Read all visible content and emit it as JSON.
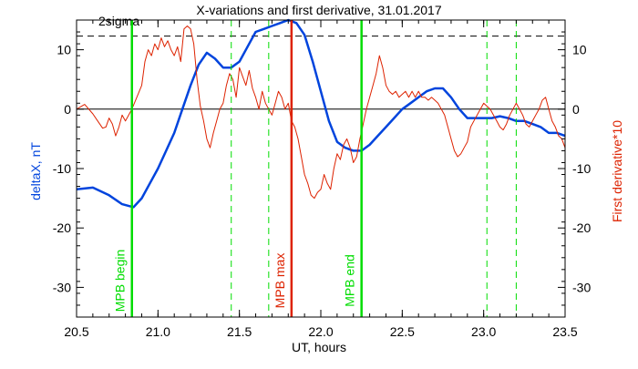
{
  "chart_data": {
    "type": "line",
    "title": "X-variations and first derivative, 31.01.2017",
    "xlabel": "UT, hours",
    "ylabel": "deltaX, nT",
    "ylabel_right": "First derivative*10",
    "xlim": [
      20.5,
      23.5
    ],
    "ylim": [
      -35,
      15
    ],
    "x_ticks": [
      20.5,
      21.0,
      21.5,
      22.0,
      22.5,
      23.0,
      23.5
    ],
    "x_tick_labels": [
      "20.5",
      "21.0",
      "21.5",
      "22.0",
      "22.5",
      "23.0",
      "23.5"
    ],
    "y_ticks": [
      10,
      0,
      -10,
      -20,
      -30
    ],
    "y_tick_labels": [
      "10",
      "0",
      "-10",
      "-20",
      "-30"
    ],
    "grid": false,
    "threshold": {
      "label": "2sigma",
      "value": 12.3,
      "style": "dashed",
      "color": "#000000"
    },
    "zero_line": {
      "value": 0,
      "color": "#000000"
    },
    "vlines": [
      {
        "x": 20.84,
        "label": "MPB begin",
        "color": "#00dd00",
        "style": "solid"
      },
      {
        "x": 21.45,
        "label": "",
        "color": "#00dd00",
        "style": "dashed"
      },
      {
        "x": 21.68,
        "label": "",
        "color": "#00dd00",
        "style": "dashed"
      },
      {
        "x": 21.82,
        "label": "MPB max",
        "color": "#dd2200",
        "style": "solid"
      },
      {
        "x": 22.25,
        "label": "MPB end",
        "color": "#00dd00",
        "style": "solid"
      },
      {
        "x": 23.02,
        "label": "",
        "color": "#00dd00",
        "style": "dashed"
      },
      {
        "x": 23.2,
        "label": "",
        "color": "#00dd00",
        "style": "dashed"
      }
    ],
    "series": [
      {
        "axis": "left",
        "color": "#0044dd",
        "x": [
          20.5,
          20.6,
          20.7,
          20.78,
          20.85,
          20.9,
          20.95,
          21.0,
          21.05,
          21.1,
          21.15,
          21.2,
          21.25,
          21.3,
          21.35,
          21.4,
          21.45,
          21.5,
          21.55,
          21.6,
          21.65,
          21.7,
          21.75,
          21.8,
          21.85,
          21.9,
          21.95,
          22.0,
          22.05,
          22.1,
          22.15,
          22.2,
          22.25,
          22.3,
          22.35,
          22.4,
          22.45,
          22.5,
          22.55,
          22.6,
          22.65,
          22.7,
          22.75,
          22.8,
          22.85,
          22.9,
          22.95,
          23.0,
          23.05,
          23.1,
          23.15,
          23.2,
          23.25,
          23.3,
          23.35,
          23.4,
          23.45,
          23.5
        ],
        "y": [
          -13.5,
          -13.2,
          -14.5,
          -16.0,
          -16.5,
          -15.0,
          -12.5,
          -10.0,
          -7.0,
          -4.0,
          0.0,
          4.0,
          7.5,
          9.5,
          8.5,
          7.0,
          7.0,
          8.0,
          10.5,
          13.0,
          13.5,
          14.0,
          14.5,
          15.0,
          14.5,
          12.5,
          8.0,
          3.0,
          -2.0,
          -5.5,
          -6.5,
          -7.0,
          -7.0,
          -6.0,
          -4.5,
          -3.0,
          -1.5,
          0.0,
          1.0,
          2.0,
          3.0,
          3.5,
          3.5,
          2.0,
          0.0,
          -1.5,
          -1.5,
          -1.5,
          -1.5,
          -1.2,
          -1.5,
          -2.0,
          -2.0,
          -2.5,
          -3.0,
          -4.0,
          -4.0,
          -4.5
        ]
      },
      {
        "axis": "right",
        "color": "#dd2200",
        "x": [
          20.5,
          20.55,
          20.6,
          20.63,
          20.66,
          20.68,
          20.7,
          20.72,
          20.74,
          20.76,
          20.78,
          20.8,
          20.82,
          20.84,
          20.87,
          20.9,
          20.92,
          20.94,
          20.96,
          20.98,
          21.0,
          21.02,
          21.04,
          21.06,
          21.08,
          21.1,
          21.12,
          21.14,
          21.16,
          21.18,
          21.2,
          21.22,
          21.24,
          21.26,
          21.28,
          21.3,
          21.32,
          21.34,
          21.36,
          21.38,
          21.4,
          21.42,
          21.44,
          21.46,
          21.48,
          21.5,
          21.52,
          21.54,
          21.56,
          21.58,
          21.6,
          21.62,
          21.64,
          21.66,
          21.68,
          21.7,
          21.72,
          21.74,
          21.76,
          21.78,
          21.8,
          21.82,
          21.84,
          21.86,
          21.88,
          21.9,
          21.92,
          21.94,
          21.96,
          21.98,
          22.0,
          22.02,
          22.04,
          22.06,
          22.08,
          22.1,
          22.12,
          22.14,
          22.16,
          22.18,
          22.2,
          22.22,
          22.24,
          22.26,
          22.28,
          22.3,
          22.32,
          22.34,
          22.36,
          22.38,
          22.4,
          22.42,
          22.44,
          22.46,
          22.48,
          22.5,
          22.52,
          22.54,
          22.56,
          22.58,
          22.6,
          22.62,
          22.64,
          22.66,
          22.68,
          22.7,
          22.72,
          22.74,
          22.76,
          22.78,
          22.8,
          22.82,
          22.84,
          22.86,
          22.88,
          22.9,
          22.92,
          22.94,
          22.96,
          22.98,
          23.0,
          23.02,
          23.04,
          23.06,
          23.08,
          23.1,
          23.12,
          23.14,
          23.16,
          23.18,
          23.2,
          23.22,
          23.24,
          23.26,
          23.28,
          23.3,
          23.32,
          23.34,
          23.36,
          23.38,
          23.4,
          23.42,
          23.44,
          23.46,
          23.48,
          23.5
        ],
        "y": [
          0.0,
          0.8,
          -0.8,
          -2.0,
          -3.2,
          -3.0,
          -1.5,
          -2.5,
          -4.5,
          -3.0,
          -1.0,
          -2.0,
          -1.0,
          0.0,
          2.0,
          4.0,
          8.0,
          10.0,
          9.0,
          11.0,
          10.0,
          12.0,
          10.5,
          11.5,
          10.0,
          9.0,
          10.5,
          8.0,
          13.5,
          14.0,
          13.5,
          11.0,
          5.0,
          0.5,
          -2.0,
          -5.0,
          -6.5,
          -4.0,
          -2.0,
          0.0,
          1.0,
          4.0,
          6.0,
          5.0,
          2.0,
          7.0,
          5.5,
          4.0,
          6.5,
          3.5,
          2.0,
          0.0,
          3.0,
          1.0,
          0.0,
          -1.0,
          1.0,
          3.0,
          2.0,
          0.0,
          1.0,
          -2.0,
          -3.0,
          -5.0,
          -8.0,
          -11.0,
          -12.5,
          -14.5,
          -15.0,
          -14.0,
          -13.5,
          -11.0,
          -12.5,
          -13.5,
          -10.0,
          -7.5,
          -8.5,
          -6.0,
          -5.0,
          -6.5,
          -9.0,
          -8.0,
          -5.0,
          -2.5,
          0.0,
          2.0,
          4.0,
          6.0,
          9.0,
          7.0,
          4.0,
          3.0,
          2.5,
          3.0,
          2.0,
          2.5,
          3.0,
          2.0,
          3.0,
          2.0,
          3.0,
          2.0,
          2.0,
          1.5,
          2.0,
          1.5,
          1.0,
          0.0,
          -1.0,
          -3.0,
          -5.0,
          -7.0,
          -8.0,
          -7.5,
          -6.5,
          -5.5,
          -3.0,
          -2.0,
          -1.0,
          0.0,
          1.0,
          0.5,
          0.0,
          -1.0,
          -2.0,
          -3.0,
          -3.5,
          -2.5,
          -1.0,
          0.0,
          1.0,
          0.0,
          -1.0,
          -2.5,
          -3.0,
          -2.0,
          -1.0,
          0.0,
          1.5,
          2.0,
          0.0,
          -2.0,
          -3.0,
          -4.5,
          -5.0,
          -6.5
        ]
      }
    ]
  }
}
